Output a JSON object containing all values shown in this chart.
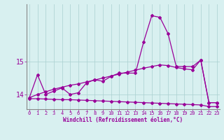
{
  "xlabel": "Windchill (Refroidissement éolien,°C)",
  "bg_color": "#d8f0f0",
  "line_color": "#990099",
  "x": [
    0,
    1,
    2,
    3,
    4,
    5,
    6,
    7,
    8,
    9,
    10,
    11,
    12,
    13,
    14,
    15,
    16,
    17,
    18,
    19,
    20,
    21,
    22,
    23
  ],
  "y_jagged": [
    13.9,
    14.6,
    14.0,
    14.1,
    14.2,
    14.0,
    14.05,
    14.35,
    14.45,
    14.4,
    14.55,
    14.65,
    14.65,
    14.65,
    15.6,
    16.4,
    16.35,
    15.85,
    14.85,
    14.85,
    14.85,
    15.05,
    13.75,
    13.75
  ],
  "y_rising": [
    13.9,
    14.0,
    14.08,
    14.16,
    14.22,
    14.28,
    14.32,
    14.38,
    14.44,
    14.5,
    14.56,
    14.62,
    14.68,
    14.74,
    14.8,
    14.85,
    14.9,
    14.88,
    14.82,
    14.78,
    14.75,
    15.05,
    13.75,
    13.75
  ],
  "y_flat": [
    13.87,
    13.87,
    13.86,
    13.85,
    13.84,
    13.84,
    13.83,
    13.82,
    13.81,
    13.8,
    13.79,
    13.78,
    13.77,
    13.76,
    13.75,
    13.74,
    13.73,
    13.72,
    13.71,
    13.7,
    13.69,
    13.68,
    13.63,
    13.63
  ],
  "xlim": [
    -0.3,
    23.3
  ],
  "ylim": [
    13.55,
    16.75
  ],
  "yticks": [
    14,
    15
  ],
  "xticks": [
    0,
    1,
    2,
    3,
    4,
    5,
    6,
    7,
    8,
    9,
    10,
    11,
    12,
    13,
    14,
    15,
    16,
    17,
    18,
    19,
    20,
    21,
    22,
    23
  ],
  "grid_color": "#aacfcf",
  "font_color": "#990099",
  "axis_color": "#888888",
  "marker": "D",
  "markersize": 2.0,
  "linewidth": 0.9
}
